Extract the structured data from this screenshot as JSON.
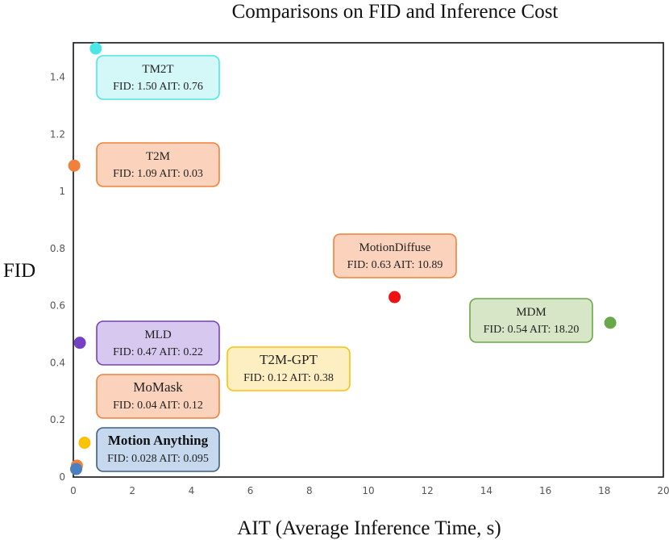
{
  "chart_data": {
    "type": "scatter",
    "title": "Comparisons on FID and Inference Cost",
    "xlabel": "AIT (Average Inference Time, s)",
    "ylabel": "FID",
    "xlim": [
      0,
      20
    ],
    "ylim": [
      0,
      1.52
    ],
    "x_ticks": [
      "0",
      "2",
      "4",
      "6",
      "8",
      "10",
      "12",
      "14",
      "16",
      "18",
      "20"
    ],
    "y_ticks": [
      "0",
      "0.2",
      "0.4",
      "0.6",
      "0.8",
      "1",
      "1.2",
      "1.4"
    ],
    "points": [
      {
        "name": "TM2T",
        "x": 0.76,
        "y": 1.5,
        "label": "FID: 1.50 AIT: 0.76",
        "color": "#4de6e6",
        "box_fill": "#d4f7f7",
        "box_stroke": "#4de6e6",
        "style": "normal"
      },
      {
        "name": "T2M",
        "x": 0.03,
        "y": 1.09,
        "label": "FID: 1.09 AIT: 0.03",
        "color": "#f0813c",
        "box_fill": "#fbd3bd",
        "box_stroke": "#f0813c",
        "style": "normal"
      },
      {
        "name": "MotionDiffuse",
        "x": 10.89,
        "y": 0.63,
        "label": "FID: 0.63 AIT: 10.89",
        "color": "#ee1111",
        "box_fill": "#fbd3bd",
        "box_stroke": "#f0813c",
        "style": "normal"
      },
      {
        "name": "MDM",
        "x": 18.2,
        "y": 0.54,
        "label": "FID: 0.54 AIT: 18.20",
        "color": "#69a848",
        "box_fill": "#d7e6c7",
        "box_stroke": "#69a848",
        "style": "normal"
      },
      {
        "name": "MLD",
        "x": 0.22,
        "y": 0.47,
        "label": "FID: 0.47 AIT: 0.22",
        "color": "#7341c2",
        "box_fill": "#d6c8ef",
        "box_stroke": "#7341c2",
        "style": "normal"
      },
      {
        "name": "T2M-GPT",
        "x": 0.38,
        "y": 0.12,
        "label": "FID: 0.12 AIT: 0.38",
        "color": "#fbc20a",
        "box_fill": "#fdefc1",
        "box_stroke": "#fbc20a",
        "style": "big"
      },
      {
        "name": "MoMask",
        "x": 0.12,
        "y": 0.04,
        "label": "FID: 0.04 AIT: 0.12",
        "color": "#f0813c",
        "box_fill": "#fbd3bd",
        "box_stroke": "#f0813c",
        "style": "big"
      },
      {
        "name": "Motion Anything",
        "x": 0.095,
        "y": 0.028,
        "label": "FID: 0.028 AIT: 0.095",
        "color": "#4a7fc0",
        "box_fill": "#c6d8ee",
        "box_stroke": "#3d5f86",
        "style": "bold"
      }
    ]
  }
}
